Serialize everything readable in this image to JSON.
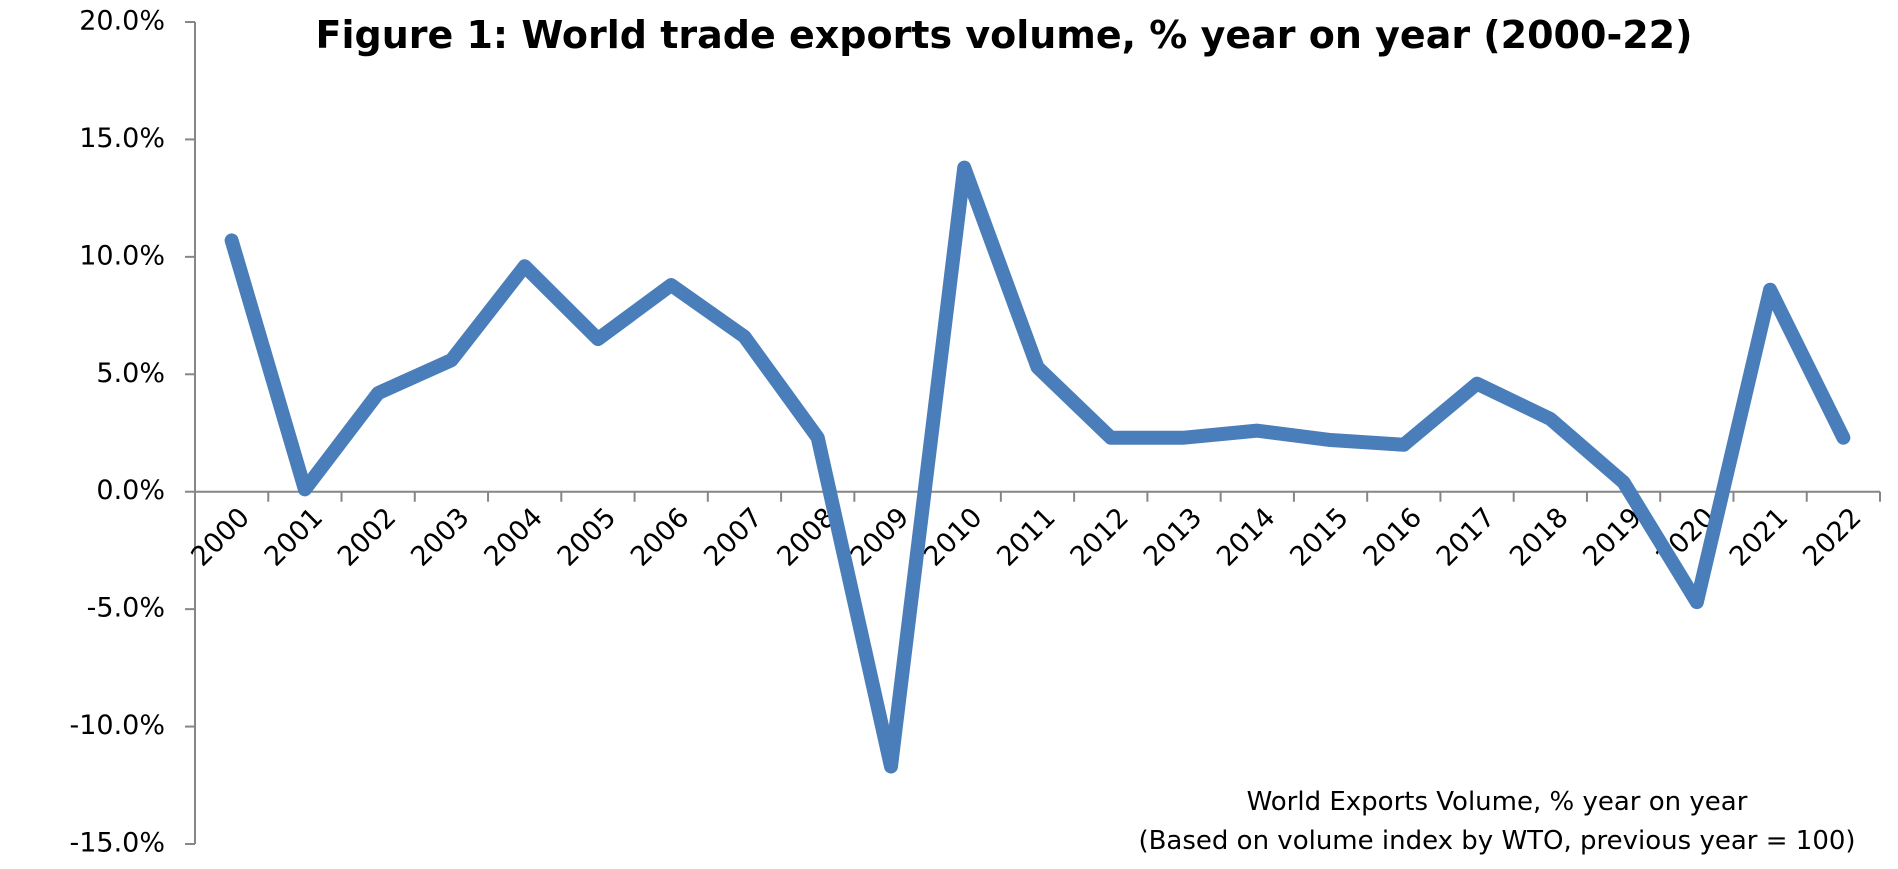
{
  "chart_data": {
    "type": "line",
    "title": "Figure 1: World trade exports volume, % year on year (2000-22)",
    "categories": [
      "2000",
      "2001",
      "2002",
      "2003",
      "2004",
      "2005",
      "2006",
      "2007",
      "2008",
      "2009",
      "2010",
      "2011",
      "2012",
      "2013",
      "2014",
      "2015",
      "2016",
      "2017",
      "2018",
      "2019",
      "2020",
      "2021",
      "2022"
    ],
    "series": [
      {
        "name": "World Exports Volume, % year on year",
        "color": "#4a7ebb",
        "values": [
          10.7,
          0.1,
          4.2,
          5.6,
          9.6,
          6.5,
          8.8,
          6.6,
          2.3,
          -11.7,
          13.8,
          5.3,
          2.3,
          2.3,
          2.6,
          2.2,
          2.0,
          4.6,
          3.1,
          0.4,
          -4.7,
          8.6,
          2.3
        ]
      }
    ],
    "note": "(Based on volume index by WTO, previous year = 100)",
    "ylim": [
      -15,
      20
    ],
    "yticks": [
      {
        "value": -15,
        "label": "-15.0%"
      },
      {
        "value": -10,
        "label": "-10.0%"
      },
      {
        "value": -5,
        "label": "-5.0%"
      },
      {
        "value": 0,
        "label": "0.0%"
      },
      {
        "value": 5,
        "label": "5.0%"
      },
      {
        "value": 10,
        "label": "10.0%"
      },
      {
        "value": 15,
        "label": "15.0%"
      },
      {
        "value": 20,
        "label": "20.0%"
      }
    ],
    "grid": false
  }
}
